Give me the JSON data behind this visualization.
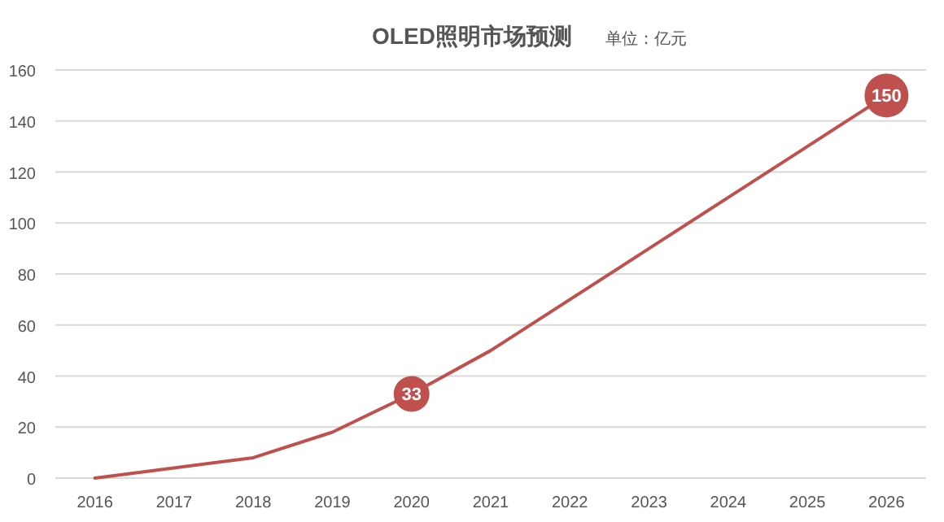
{
  "chart_data": {
    "type": "line",
    "title": "OLED照明市场预测",
    "subtitle": "单位：亿元",
    "categories": [
      "2016",
      "2017",
      "2018",
      "2019",
      "2020",
      "2021",
      "2022",
      "2023",
      "2024",
      "2025",
      "2026"
    ],
    "series": [
      {
        "color": "#c0504d",
        "values": [
          0,
          4,
          8,
          18,
          33,
          50,
          70,
          90,
          110,
          130,
          150
        ],
        "value_labels": [
          null,
          null,
          null,
          null,
          "33",
          null,
          null,
          null,
          null,
          null,
          "150"
        ]
      }
    ],
    "ylim": [
      0,
      160
    ],
    "yticks": [
      0,
      20,
      40,
      60,
      80,
      100,
      120,
      140,
      160
    ],
    "grid": "y",
    "marker": "none",
    "line_style": "solid"
  }
}
